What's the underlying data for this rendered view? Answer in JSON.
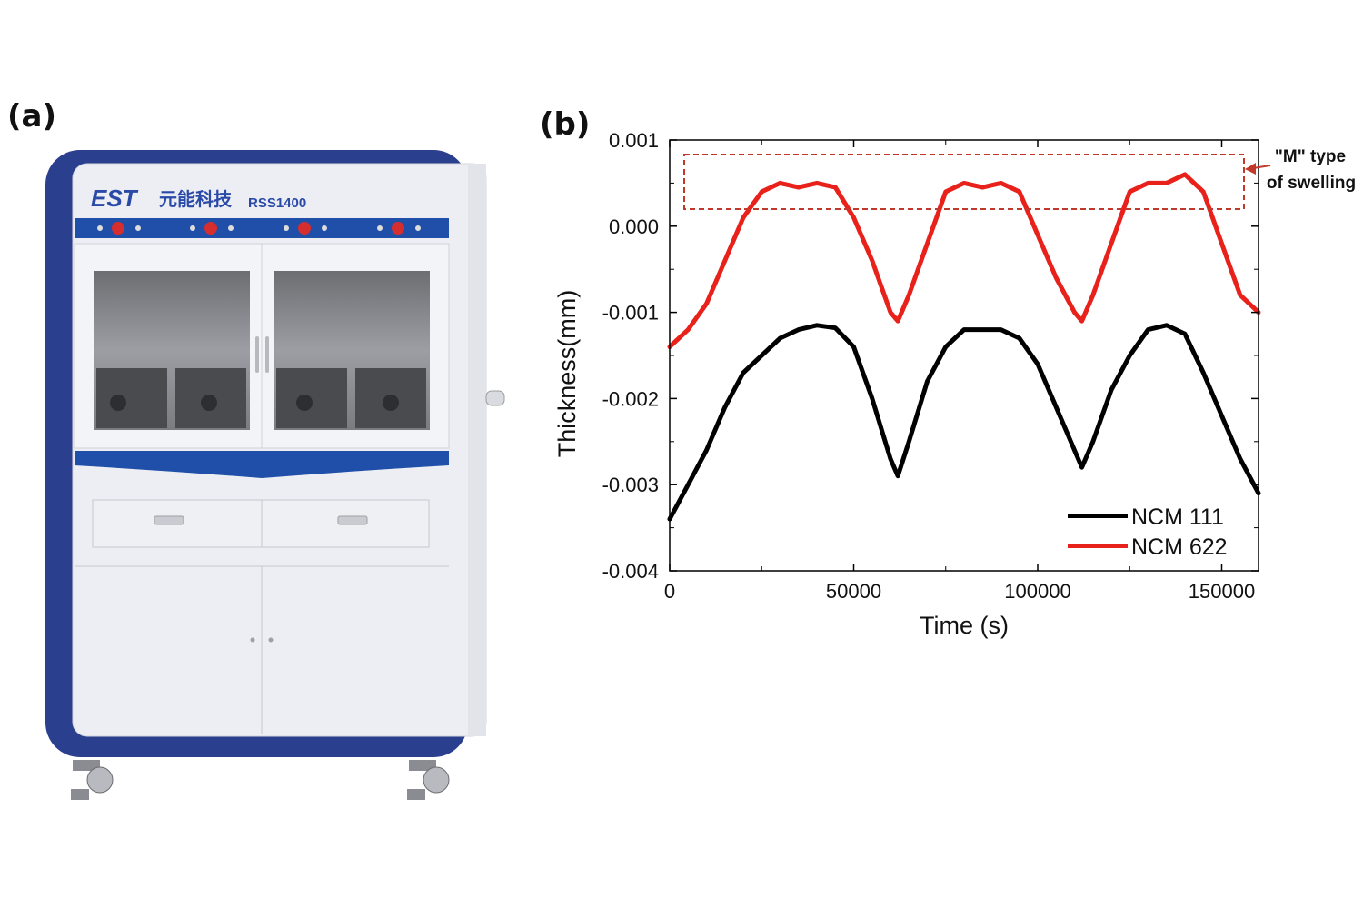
{
  "panel_a": {
    "label": "(a)",
    "brand": "EST",
    "brand_cn": "元能科技",
    "model": "RSS1400"
  },
  "panel_b": {
    "label": "(b)",
    "annotation_line1": "\"M\" type",
    "annotation_line2": "of swelling"
  },
  "chart_data": {
    "type": "line",
    "title": "",
    "xlabel": "Time (s)",
    "ylabel": "Thickness(mm)",
    "xlim": [
      0,
      160000
    ],
    "ylim": [
      -0.004,
      0.001
    ],
    "xticks": [
      0,
      50000,
      100000,
      150000
    ],
    "xtick_labels": [
      "0",
      "50000",
      "100000",
      "150000"
    ],
    "yticks": [
      0.001,
      0.0,
      -0.001,
      -0.002,
      -0.003,
      -0.004
    ],
    "ytick_labels": [
      "0.001",
      "0.000",
      "-0.001",
      "-0.002",
      "-0.003",
      "-0.004"
    ],
    "grid": false,
    "legend_position": "bottom-right",
    "series": [
      {
        "name": "NCM 111",
        "color": "#000000",
        "x": [
          0,
          5000,
          10000,
          15000,
          20000,
          25000,
          30000,
          35000,
          40000,
          45000,
          50000,
          55000,
          60000,
          62000,
          65000,
          70000,
          75000,
          80000,
          85000,
          90000,
          95000,
          100000,
          105000,
          110000,
          112000,
          115000,
          120000,
          125000,
          130000,
          135000,
          140000,
          145000,
          150000,
          155000,
          160000
        ],
        "y": [
          -0.0034,
          -0.003,
          -0.0026,
          -0.0021,
          -0.0017,
          -0.0015,
          -0.0013,
          -0.0012,
          -0.00115,
          -0.00118,
          -0.0014,
          -0.002,
          -0.0027,
          -0.0029,
          -0.0025,
          -0.0018,
          -0.0014,
          -0.0012,
          -0.0012,
          -0.0012,
          -0.0013,
          -0.0016,
          -0.0021,
          -0.0026,
          -0.0028,
          -0.0025,
          -0.0019,
          -0.0015,
          -0.0012,
          -0.00115,
          -0.00125,
          -0.0017,
          -0.0022,
          -0.0027,
          -0.0031
        ]
      },
      {
        "name": "NCM 622",
        "color": "#e8211b",
        "x": [
          0,
          5000,
          10000,
          15000,
          20000,
          25000,
          30000,
          35000,
          40000,
          45000,
          50000,
          55000,
          60000,
          62000,
          65000,
          70000,
          75000,
          80000,
          85000,
          90000,
          95000,
          100000,
          105000,
          110000,
          112000,
          115000,
          120000,
          125000,
          130000,
          135000,
          140000,
          145000,
          150000,
          155000,
          160000
        ],
        "y": [
          -0.0014,
          -0.0012,
          -0.0009,
          -0.0004,
          0.0001,
          0.0004,
          0.0005,
          0.00045,
          0.0005,
          0.00045,
          0.0001,
          -0.0004,
          -0.001,
          -0.0011,
          -0.0008,
          -0.0002,
          0.0004,
          0.0005,
          0.00045,
          0.0005,
          0.0004,
          -0.0001,
          -0.0006,
          -0.001,
          -0.0011,
          -0.0008,
          -0.0002,
          0.0004,
          0.0005,
          0.0005,
          0.0006,
          0.0004,
          -0.0002,
          -0.0008,
          -0.001
        ]
      }
    ]
  }
}
